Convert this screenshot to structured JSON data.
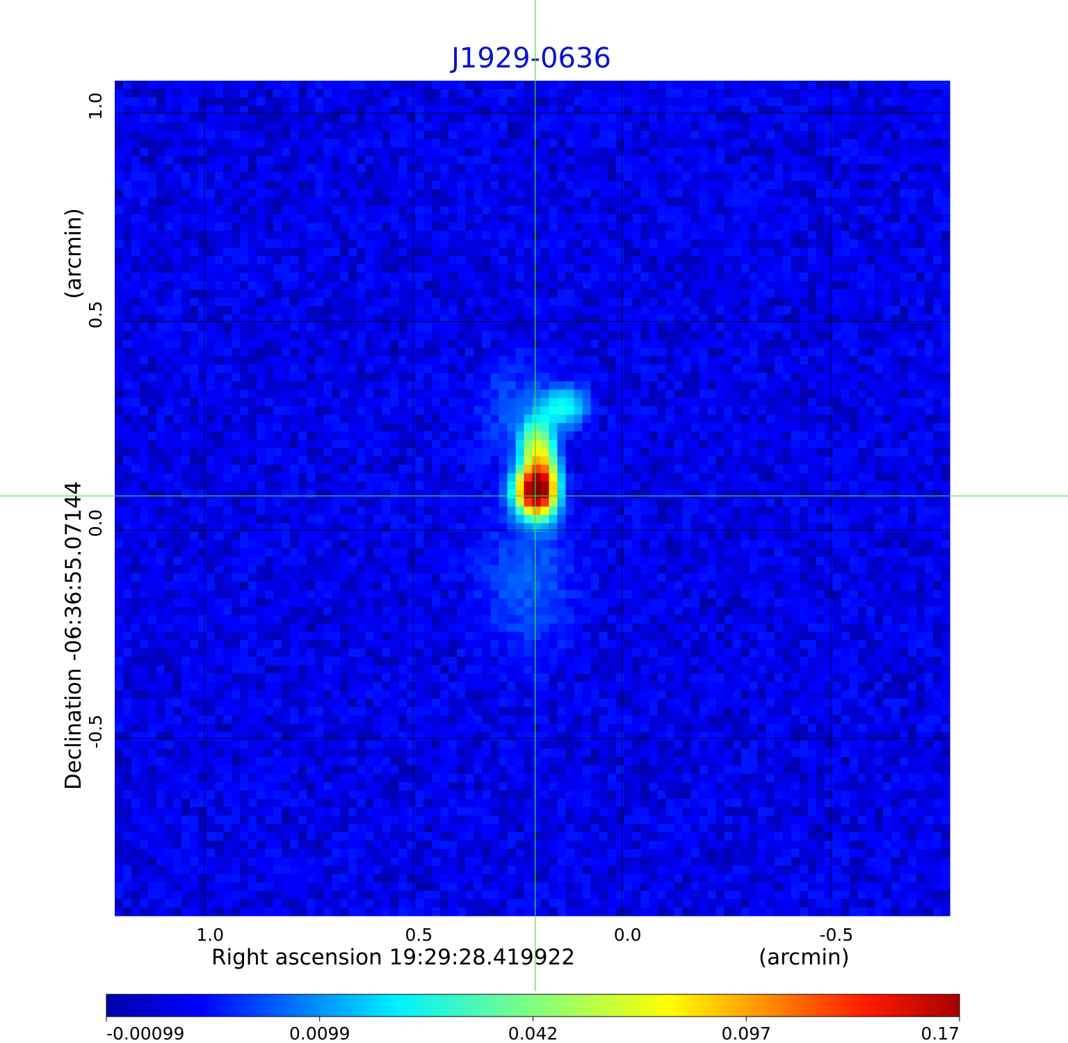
{
  "chart_data": {
    "type": "heatmap",
    "title": "J1929-0636",
    "xlabel": "Right ascension  19:29:28.419922",
    "xunit": "(arcmin)",
    "ylabel": "Declination  -06:36:55.07144",
    "yunit": "(arcmin)",
    "x_ticks": [
      "1.0",
      "0.5",
      "0.0",
      "-0.5"
    ],
    "y_ticks": [
      "1.0",
      "0.5",
      "0.0",
      "-0.5"
    ],
    "x_tick_values": [
      1.0,
      0.5,
      0.0,
      -0.5
    ],
    "y_tick_values": [
      1.0,
      0.5,
      0.0,
      -0.5
    ],
    "xlim": [
      1.215,
      -0.785
    ],
    "ylim": [
      -0.925,
      1.078
    ],
    "grid": true,
    "colormap": "jet",
    "colorbar_ticks": [
      "-0.00099",
      "0.0099",
      "0.042",
      "0.097",
      "0.17"
    ],
    "colorbar_range": [
      -0.00099,
      0.17
    ],
    "crosshair": {
      "x": 0.208,
      "y": 0.082,
      "color": "#44dd44"
    },
    "background_level": 0.001,
    "sources": [
      {
        "x": 0.208,
        "y": 0.095,
        "sigma_x": 0.028,
        "sigma_y": 0.035,
        "peak": 0.17
      },
      {
        "x": 0.19,
        "y": 0.15,
        "sigma_x": 0.022,
        "sigma_y": 0.07,
        "peak": 0.055
      },
      {
        "x": 0.218,
        "y": 0.2,
        "sigma_x": 0.02,
        "sigma_y": 0.04,
        "peak": 0.03
      },
      {
        "x": 0.14,
        "y": 0.295,
        "sigma_x": 0.035,
        "sigma_y": 0.03,
        "peak": 0.024
      },
      {
        "x": 0.225,
        "y": -0.12,
        "sigma_x": 0.07,
        "sigma_y": 0.11,
        "peak": 0.006
      },
      {
        "x": 0.26,
        "y": 0.28,
        "sigma_x": 0.05,
        "sigma_y": 0.08,
        "peak": 0.005
      }
    ]
  }
}
